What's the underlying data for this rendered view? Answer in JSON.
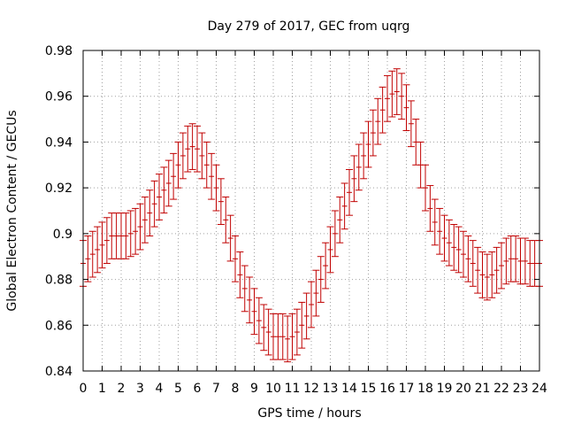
{
  "chart_data": {
    "type": "scatter",
    "title": "Day 279 of 2017, GEC from uqrg",
    "xlabel": "GPS time / hours",
    "ylabel": "Global Electron Content / GECUs",
    "xlim": [
      0,
      24
    ],
    "ylim": [
      0.84,
      0.98
    ],
    "grid": true,
    "error_bar_color": "#c00000",
    "x_ticks": [
      "0",
      "1",
      "2",
      "3",
      "4",
      "5",
      "6",
      "7",
      "8",
      "9",
      "10",
      "11",
      "12",
      "13",
      "14",
      "15",
      "16",
      "17",
      "18",
      "19",
      "20",
      "21",
      "22",
      "23",
      "24"
    ],
    "y_ticks": [
      "0.84",
      "0.86",
      "0.88",
      "0.9",
      "0.92",
      "0.94",
      "0.96",
      "0.98"
    ],
    "series": [
      {
        "x": [
          0.0,
          0.25,
          0.5,
          0.75,
          1.0,
          1.25,
          1.5,
          1.75,
          2.0,
          2.25,
          2.5,
          2.75,
          3.0,
          3.25,
          3.5,
          3.75,
          4.0,
          4.25,
          4.5,
          4.75,
          5.0,
          5.25,
          5.5,
          5.75,
          6.0,
          6.25,
          6.5,
          6.75,
          7.0,
          7.25,
          7.5,
          7.75,
          8.0,
          8.25,
          8.5,
          8.75,
          9.0,
          9.25,
          9.5,
          9.75,
          10.0,
          10.25,
          10.5,
          10.75,
          11.0,
          11.25,
          11.5,
          11.75,
          12.0,
          12.25,
          12.5,
          12.75,
          13.0,
          13.25,
          13.5,
          13.75,
          14.0,
          14.25,
          14.5,
          14.75,
          15.0,
          15.25,
          15.5,
          15.75,
          16.0,
          16.25,
          16.5,
          16.75,
          17.0,
          17.25,
          17.5,
          17.75,
          18.0,
          18.25,
          18.5,
          18.75,
          19.0,
          19.25,
          19.5,
          19.75,
          20.0,
          20.25,
          20.5,
          20.75,
          21.0,
          21.25,
          21.5,
          21.75,
          22.0,
          22.25,
          22.5,
          22.75,
          23.0,
          23.25,
          23.5,
          23.75,
          24.0
        ],
        "y": [
          0.887,
          0.889,
          0.891,
          0.893,
          0.895,
          0.897,
          0.899,
          0.899,
          0.899,
          0.899,
          0.9,
          0.901,
          0.903,
          0.906,
          0.909,
          0.913,
          0.916,
          0.919,
          0.922,
          0.925,
          0.93,
          0.934,
          0.937,
          0.938,
          0.937,
          0.934,
          0.93,
          0.925,
          0.92,
          0.914,
          0.906,
          0.898,
          0.889,
          0.882,
          0.876,
          0.871,
          0.866,
          0.862,
          0.859,
          0.857,
          0.855,
          0.855,
          0.855,
          0.854,
          0.855,
          0.857,
          0.86,
          0.864,
          0.869,
          0.874,
          0.88,
          0.886,
          0.893,
          0.9,
          0.906,
          0.912,
          0.918,
          0.924,
          0.929,
          0.934,
          0.939,
          0.944,
          0.949,
          0.954,
          0.959,
          0.961,
          0.962,
          0.96,
          0.955,
          0.948,
          0.94,
          0.93,
          0.92,
          0.911,
          0.905,
          0.901,
          0.898,
          0.896,
          0.894,
          0.893,
          0.891,
          0.889,
          0.887,
          0.884,
          0.882,
          0.881,
          0.882,
          0.884,
          0.886,
          0.888,
          0.889,
          0.889,
          0.888,
          0.888,
          0.887,
          0.887,
          0.887
        ],
        "err": [
          0.01,
          0.01,
          0.01,
          0.01,
          0.01,
          0.01,
          0.01,
          0.01,
          0.01,
          0.01,
          0.01,
          0.01,
          0.01,
          0.01,
          0.01,
          0.01,
          0.01,
          0.01,
          0.01,
          0.01,
          0.01,
          0.01,
          0.01,
          0.01,
          0.01,
          0.01,
          0.01,
          0.01,
          0.01,
          0.01,
          0.01,
          0.01,
          0.01,
          0.01,
          0.01,
          0.01,
          0.01,
          0.01,
          0.01,
          0.01,
          0.01,
          0.01,
          0.01,
          0.01,
          0.01,
          0.01,
          0.01,
          0.01,
          0.01,
          0.01,
          0.01,
          0.01,
          0.01,
          0.01,
          0.01,
          0.01,
          0.01,
          0.01,
          0.01,
          0.01,
          0.01,
          0.01,
          0.01,
          0.01,
          0.01,
          0.01,
          0.01,
          0.01,
          0.01,
          0.01,
          0.01,
          0.01,
          0.01,
          0.01,
          0.01,
          0.01,
          0.01,
          0.01,
          0.01,
          0.01,
          0.01,
          0.01,
          0.01,
          0.01,
          0.01,
          0.01,
          0.01,
          0.01,
          0.01,
          0.01,
          0.01,
          0.01,
          0.01,
          0.01,
          0.01,
          0.01,
          0.01
        ]
      }
    ]
  }
}
